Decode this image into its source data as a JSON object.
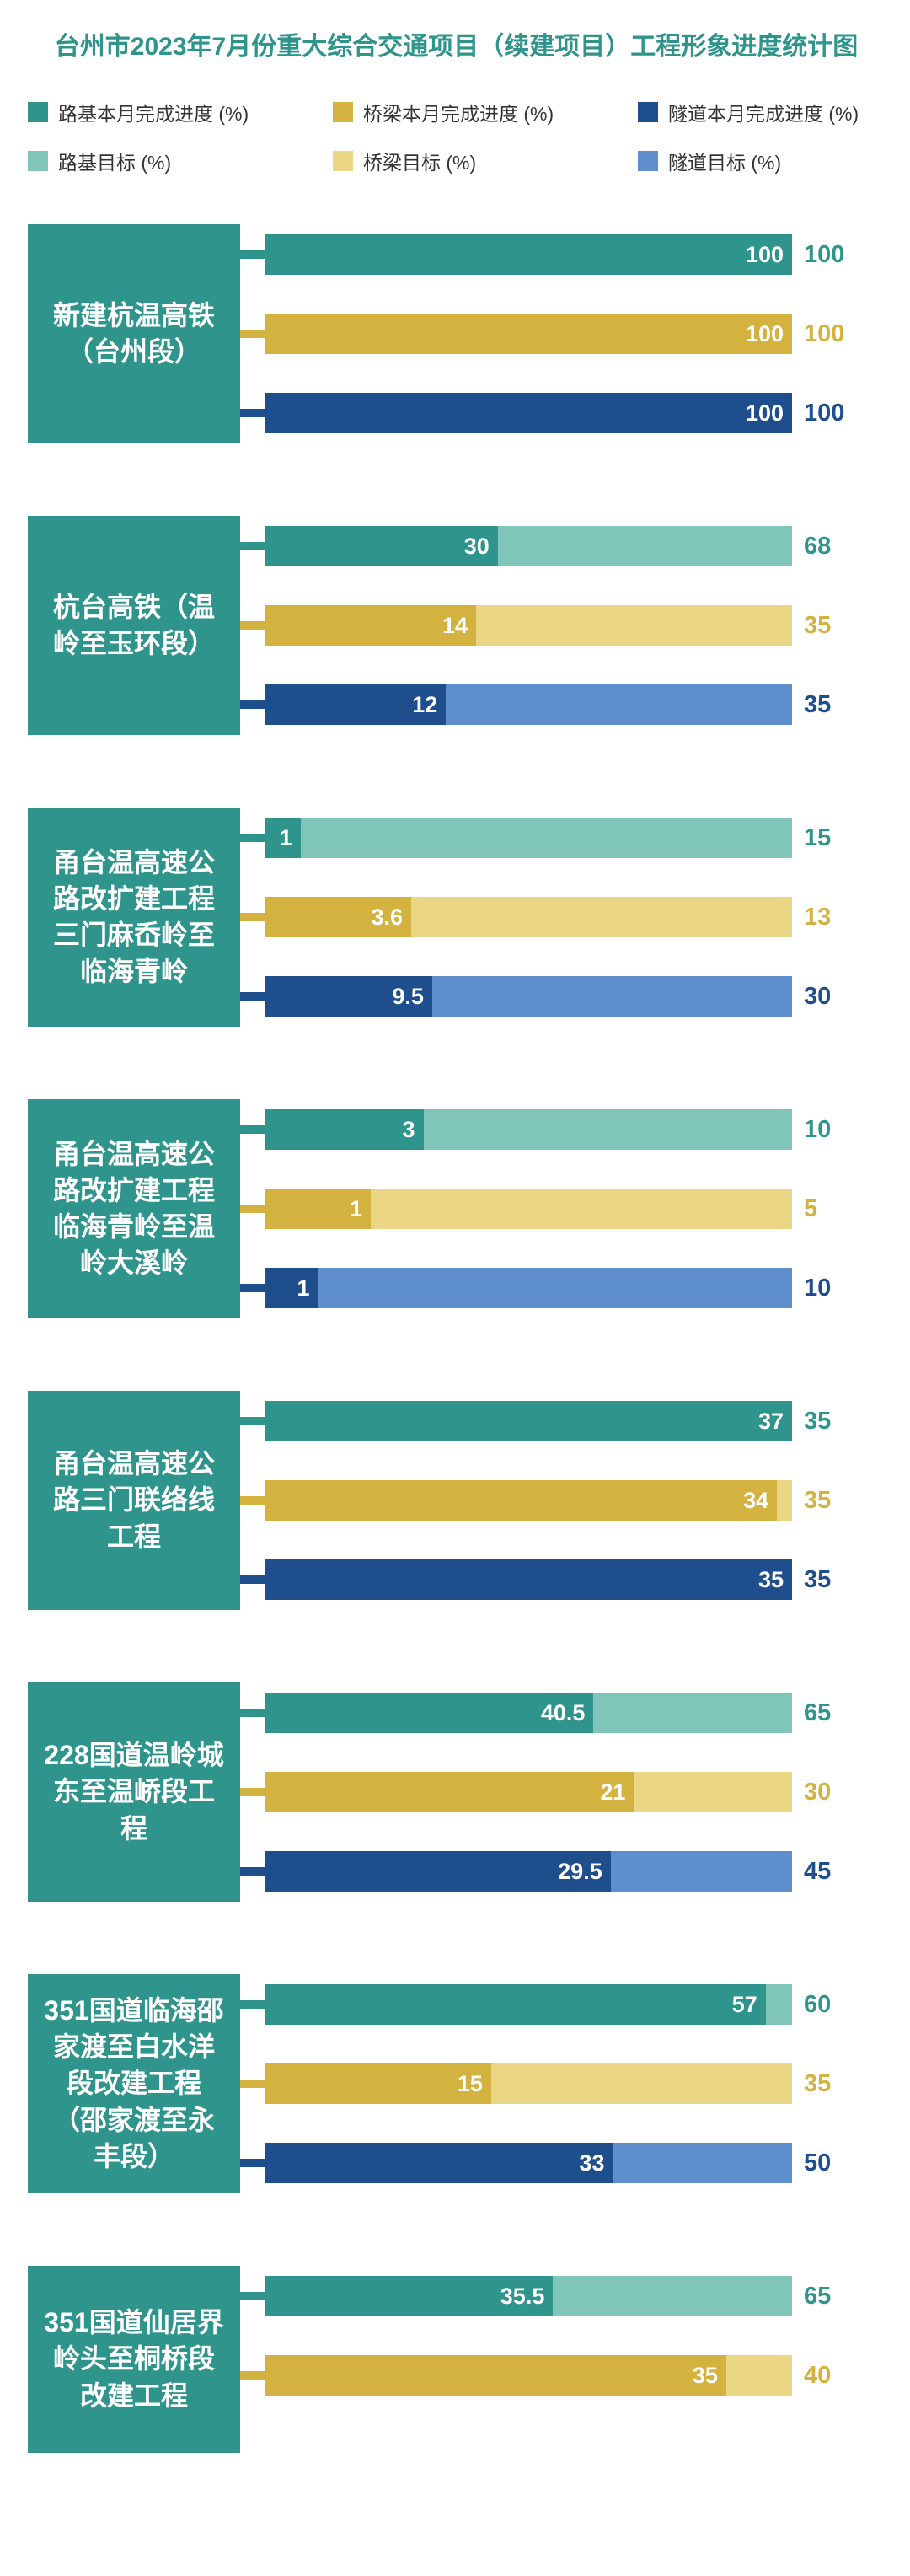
{
  "title": "台州市2023年7月份重大综合交通项目（续建项目）工程形象进度统计图",
  "colors": {
    "title": "#2F958C",
    "label_box": "#2F958C",
    "legend_text": "#333333",
    "background": "#FFFFFF"
  },
  "legend": {
    "items": [
      {
        "label": "路基本月完成进度 (%)",
        "color": "#2F958C"
      },
      {
        "label": "桥梁本月完成进度 (%)",
        "color": "#D3B240"
      },
      {
        "label": "隧道本月完成进度 (%)",
        "color": "#1E4E8C"
      },
      {
        "label": "路基目标 (%)",
        "color": "#7FC5B8"
      },
      {
        "label": "桥梁目标 (%)",
        "color": "#EAD685"
      },
      {
        "label": "隧道目标 (%)",
        "color": "#5E8FCC"
      }
    ]
  },
  "chart_data": {
    "type": "bar",
    "orientation": "horizontal",
    "unit": "%",
    "bar_scale": "each bar spans its target value; dark segment = value/target, light segment = remainder to target",
    "legend_position": "top",
    "series": [
      {
        "name": "路基",
        "legend_value": "路基本月完成进度 (%)",
        "legend_target": "路基目标 (%)",
        "value_color": "#2F958C",
        "target_color": "#7FC5B8"
      },
      {
        "name": "桥梁",
        "legend_value": "桥梁本月完成进度 (%)",
        "legend_target": "桥梁目标 (%)",
        "value_color": "#D3B240",
        "target_color": "#EAD685"
      },
      {
        "name": "隧道",
        "legend_value": "隧道本月完成进度 (%)",
        "legend_target": "隧道目标 (%)",
        "value_color": "#1E4E8C",
        "target_color": "#5E8FCC"
      }
    ],
    "projects": [
      {
        "name": "新建杭温高铁（台州段）",
        "bars": [
          {
            "series": "路基",
            "value": 100,
            "target": 100
          },
          {
            "series": "桥梁",
            "value": 100,
            "target": 100
          },
          {
            "series": "隧道",
            "value": 100,
            "target": 100
          }
        ]
      },
      {
        "name": "杭台高铁（温岭至玉环段）",
        "bars": [
          {
            "series": "路基",
            "value": 30,
            "target": 68
          },
          {
            "series": "桥梁",
            "value": 14,
            "target": 35
          },
          {
            "series": "隧道",
            "value": 12,
            "target": 35
          }
        ]
      },
      {
        "name": "甬台温高速公路改扩建工程三门麻岙岭至临海青岭",
        "bars": [
          {
            "series": "路基",
            "value": 1,
            "target": 15
          },
          {
            "series": "桥梁",
            "value": 3.6,
            "target": 13
          },
          {
            "series": "隧道",
            "value": 9.5,
            "target": 30
          }
        ]
      },
      {
        "name": "甬台温高速公路改扩建工程临海青岭至温岭大溪岭",
        "bars": [
          {
            "series": "路基",
            "value": 3,
            "target": 10
          },
          {
            "series": "桥梁",
            "value": 1,
            "target": 5
          },
          {
            "series": "隧道",
            "value": 1,
            "target": 10
          }
        ]
      },
      {
        "name": "甬台温高速公路三门联络线工程",
        "bars": [
          {
            "series": "路基",
            "value": 37,
            "target": 35
          },
          {
            "series": "桥梁",
            "value": 34,
            "target": 35
          },
          {
            "series": "隧道",
            "value": 35,
            "target": 35
          }
        ]
      },
      {
        "name": "228国道温岭城东至温峤段工程",
        "bars": [
          {
            "series": "路基",
            "value": 40.5,
            "target": 65
          },
          {
            "series": "桥梁",
            "value": 21,
            "target": 30
          },
          {
            "series": "隧道",
            "value": 29.5,
            "target": 45
          }
        ]
      },
      {
        "name": "351国道临海邵家渡至白水洋段改建工程（邵家渡至永丰段）",
        "bars": [
          {
            "series": "路基",
            "value": 57,
            "target": 60
          },
          {
            "series": "桥梁",
            "value": 15,
            "target": 35
          },
          {
            "series": "隧道",
            "value": 33,
            "target": 50
          }
        ]
      },
      {
        "name": "351国道仙居界岭头至桐桥段改建工程",
        "bars": [
          {
            "series": "路基",
            "value": 35.5,
            "target": 65
          },
          {
            "series": "桥梁",
            "value": 35,
            "target": 40
          }
        ]
      }
    ]
  }
}
